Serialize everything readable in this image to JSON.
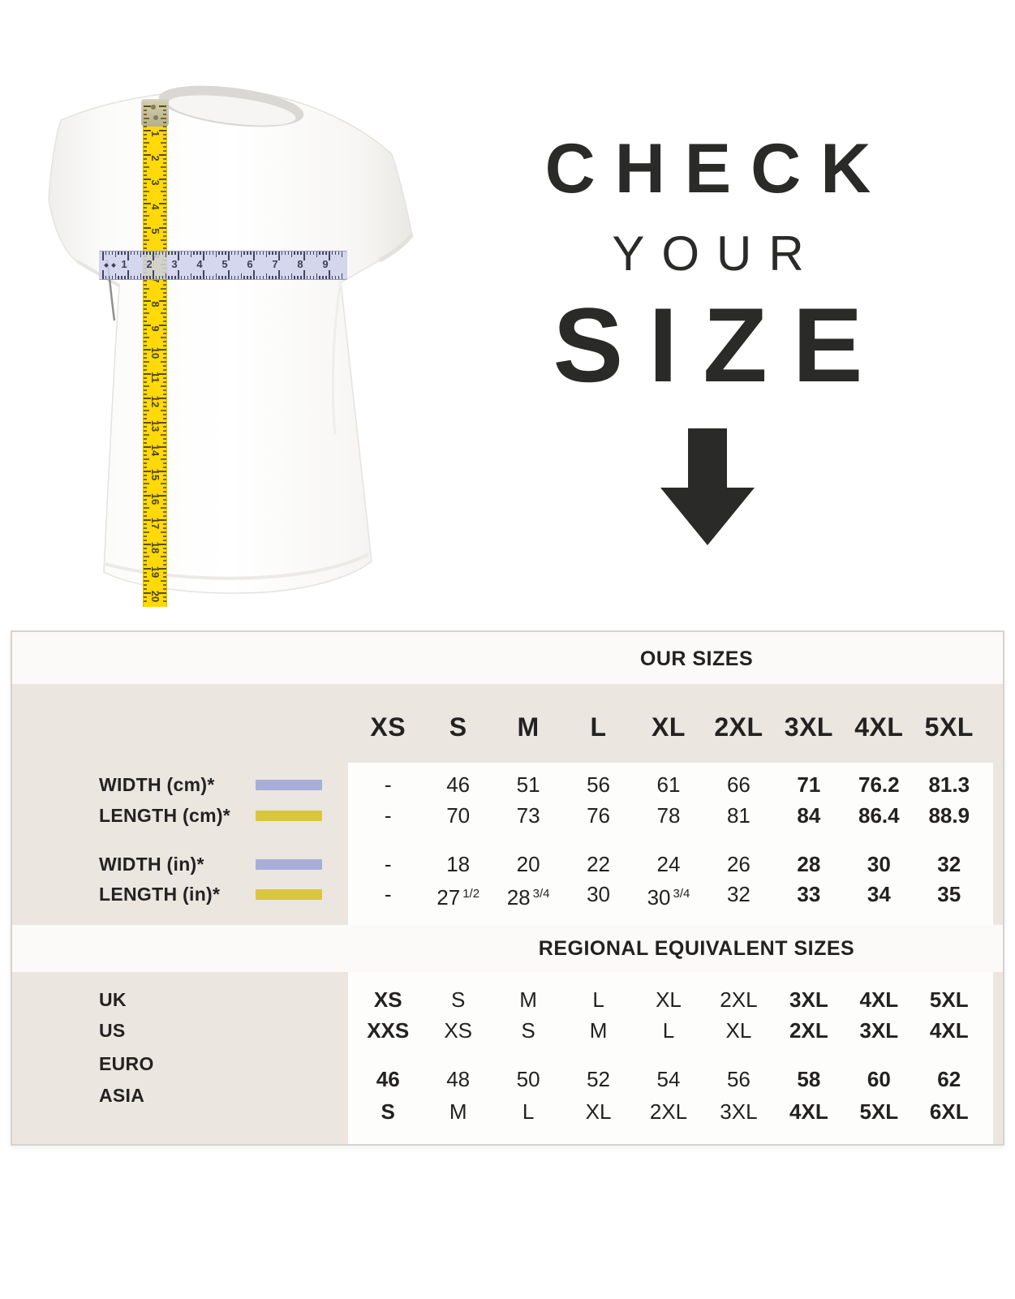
{
  "hero": {
    "headline_line1": "CHECK",
    "headline_line2": "YOUR",
    "headline_line3": "SIZE",
    "arrow_icon": "down-arrow",
    "tshirt_image": "white-tshirt-with-measuring-tapes",
    "vertical_tape_numbers": [
      "1",
      "2",
      "3",
      "4",
      "5",
      "6",
      "7",
      "8",
      "9",
      "10",
      "11",
      "12",
      "13",
      "14",
      "15",
      "16",
      "17",
      "18",
      "19",
      "20"
    ],
    "horizontal_ruler_numbers": [
      "1",
      "2",
      "3",
      "4",
      "5",
      "6",
      "7",
      "8",
      "9"
    ]
  },
  "colors": {
    "headline_text": "#2a2a28",
    "table_beige": "#ebe6e0",
    "table_band": "#fbfaf8",
    "table_panel": "#fdfdfc",
    "table_text": "#232220",
    "width_swatch": "#a9aed8",
    "length_swatch": "#d8c73c",
    "tape_yellow": "#ffd90a",
    "ruler_lavender": "#ced1ea"
  },
  "chart_data": {
    "type": "table",
    "section1": {
      "title": "OUR SIZES",
      "columns": [
        "XS",
        "S",
        "M",
        "L",
        "XL",
        "2XL",
        "3XL",
        "4XL",
        "5XL"
      ],
      "rows": [
        {
          "label": "WIDTH (cm)*",
          "swatch": "width",
          "values": [
            "-",
            "46",
            "51",
            "56",
            "61",
            "66",
            "71",
            "76.2",
            "81.3"
          ],
          "bold_columns": [
            6,
            7,
            8
          ]
        },
        {
          "label": "LENGTH (cm)*",
          "swatch": "length",
          "values": [
            "-",
            "70",
            "73",
            "76",
            "78",
            "81",
            "84",
            "86.4",
            "88.9"
          ],
          "bold_columns": [
            6,
            7,
            8
          ]
        },
        {
          "label": "WIDTH (in)*",
          "swatch": "width",
          "values": [
            "-",
            "18",
            "20",
            "22",
            "24",
            "26",
            "28",
            "30",
            "32"
          ],
          "bold_columns": [
            6,
            7,
            8
          ]
        },
        {
          "label": "LENGTH (in)*",
          "swatch": "length",
          "values": [
            "-",
            "27 1/2",
            "28 3/4",
            "30",
            "30 3/4",
            "32",
            "33",
            "34",
            "35"
          ],
          "bold_columns": [
            6,
            7,
            8
          ]
        }
      ]
    },
    "section2": {
      "title": "REGIONAL EQUIVALENT SIZES",
      "rows": [
        {
          "label": "UK",
          "values": [
            "XS",
            "S",
            "M",
            "L",
            "XL",
            "2XL",
            "3XL",
            "4XL",
            "5XL"
          ],
          "bold_columns": [
            0,
            6,
            7,
            8
          ]
        },
        {
          "label": "US",
          "values": [
            "XXS",
            "XS",
            "S",
            "M",
            "L",
            "XL",
            "2XL",
            "3XL",
            "4XL"
          ],
          "bold_columns": [
            0,
            6,
            7,
            8
          ]
        },
        {
          "label": "EURO",
          "values": [
            "46",
            "48",
            "50",
            "52",
            "54",
            "56",
            "58",
            "60",
            "62"
          ],
          "bold_columns": [
            0,
            6,
            7,
            8
          ]
        },
        {
          "label": "ASIA",
          "values": [
            "S",
            "M",
            "L",
            "XL",
            "2XL",
            "3XL",
            "4XL",
            "5XL",
            "6XL"
          ],
          "bold_columns": [
            0,
            6,
            7,
            8
          ]
        }
      ]
    }
  }
}
